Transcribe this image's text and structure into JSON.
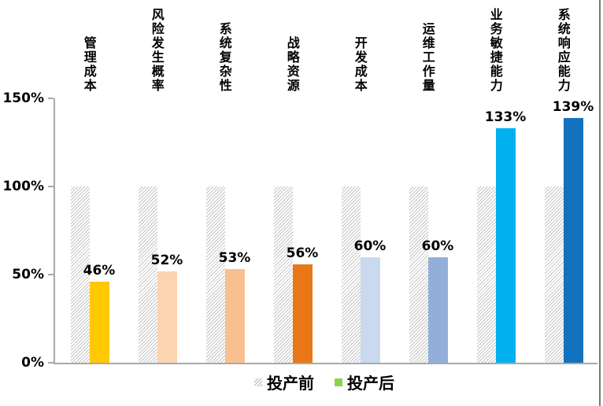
{
  "chart_data": {
    "type": "bar",
    "title": "",
    "xlabel": "",
    "ylabel": "",
    "categories": [
      "管理成本",
      "风险发生概率",
      "系统复杂性",
      "战略资源",
      "开发成本",
      "运维工作量",
      "业务敏捷能力",
      "系统响应能力"
    ],
    "series": [
      {
        "name": "投产前",
        "values": [
          100,
          100,
          100,
          100,
          100,
          100,
          100,
          100
        ],
        "style": "hatched",
        "hatch_color": "#c6c6c6"
      },
      {
        "name": "投产后",
        "values": [
          46,
          52,
          53,
          56,
          60,
          60,
          133,
          139
        ],
        "bar_colors": [
          "#FFC800",
          "#FBD4B0",
          "#F8C08F",
          "#E87817",
          "#C9D9F0",
          "#91AFD9",
          "#00B0F0",
          "#1272BE"
        ],
        "legend_swatch_color": "#92D050"
      }
    ],
    "value_labels": [
      "46%",
      "52%",
      "53%",
      "56%",
      "60%",
      "60%",
      "133%",
      "139%"
    ],
    "yticks_top_down": [
      "150%",
      "100%",
      "50%",
      "0%"
    ],
    "ylim": [
      0,
      150
    ],
    "grid": false,
    "legend_position": "bottom",
    "axis_color": "#a9a9a9"
  }
}
